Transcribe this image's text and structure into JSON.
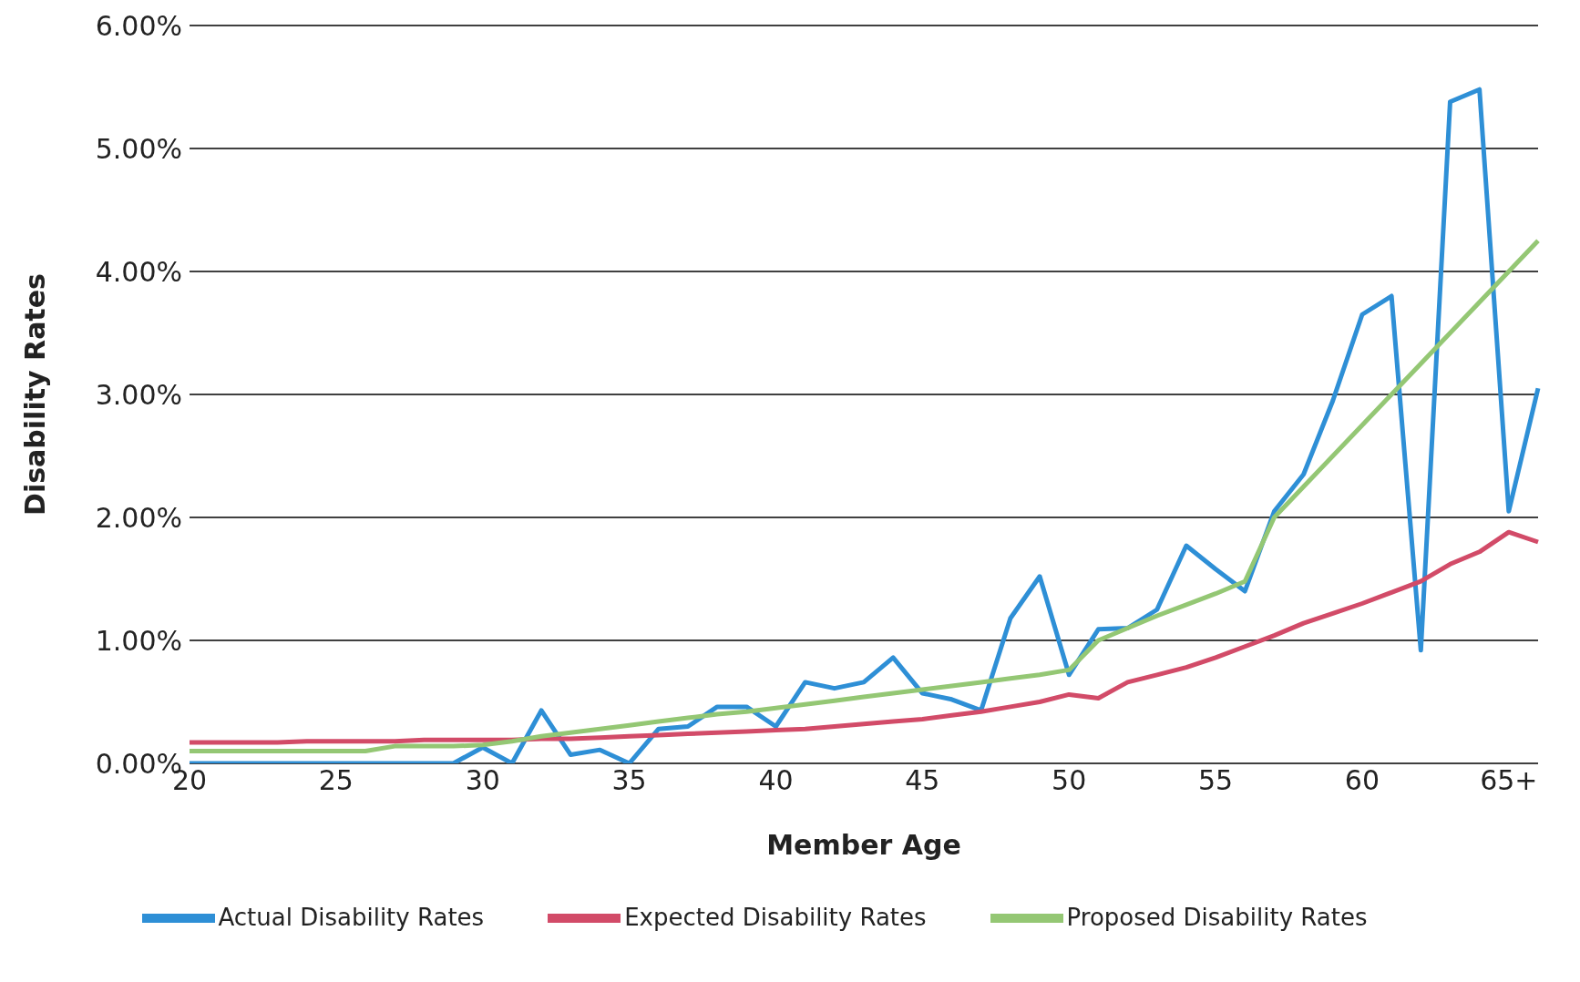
{
  "chart_data": {
    "type": "line",
    "xlabel": "Member Age",
    "ylabel": "Disability Rates",
    "categories": [
      "20",
      null,
      null,
      null,
      null,
      "25",
      null,
      null,
      null,
      null,
      "30",
      null,
      null,
      null,
      null,
      "35",
      null,
      null,
      null,
      null,
      "40",
      null,
      null,
      null,
      null,
      "45",
      null,
      null,
      null,
      null,
      "50",
      null,
      null,
      null,
      null,
      "55",
      null,
      null,
      null,
      null,
      "60",
      null,
      null,
      null,
      null,
      "65+",
      null
    ],
    "series": [
      {
        "name": "Actual Disability Rates",
        "color": "#2e8fd6",
        "values": [
          0,
          0,
          0,
          0,
          0,
          0,
          0,
          0,
          0,
          0,
          0.13,
          0,
          0.43,
          0.07,
          0.11,
          0,
          0.28,
          0.3,
          0.46,
          0.46,
          0.3,
          0.66,
          0.61,
          0.66,
          0.86,
          0.57,
          0.52,
          0.43,
          1.18,
          1.52,
          0.72,
          1.09,
          1.1,
          1.25,
          1.77,
          1.58,
          1.4,
          2.05,
          2.35,
          2.95,
          3.65,
          3.8,
          0.92,
          5.38,
          5.48,
          2.05,
          3.05
        ]
      },
      {
        "name": "Expected Disability Rates",
        "color": "#d24b68",
        "values": [
          0.17,
          0.17,
          0.17,
          0.17,
          0.18,
          0.18,
          0.18,
          0.18,
          0.19,
          0.19,
          0.19,
          0.19,
          0.2,
          0.2,
          0.21,
          0.22,
          0.23,
          0.24,
          0.25,
          0.26,
          0.27,
          0.28,
          0.3,
          0.32,
          0.34,
          0.36,
          0.39,
          0.42,
          0.46,
          0.5,
          0.56,
          0.53,
          0.66,
          0.72,
          0.78,
          0.86,
          0.95,
          1.04,
          1.14,
          1.22,
          1.3,
          1.39,
          1.48,
          1.62,
          1.72,
          1.88,
          1.8
        ]
      },
      {
        "name": "Proposed Disability Rates",
        "color": "#94c774",
        "values": [
          0.1,
          0.1,
          0.1,
          0.1,
          0.1,
          0.1,
          0.1,
          0.14,
          0.14,
          0.14,
          0.15,
          0.18,
          0.22,
          0.25,
          0.28,
          0.31,
          0.34,
          0.37,
          0.4,
          0.42,
          0.45,
          0.48,
          0.51,
          0.54,
          0.57,
          0.6,
          0.63,
          0.66,
          0.69,
          0.72,
          0.76,
          1.0,
          1.1,
          1.2,
          1.29,
          1.38,
          1.48,
          2.0,
          2.25,
          2.5,
          2.75,
          3.0,
          3.25,
          3.5,
          3.75,
          4.0,
          4.25
        ]
      }
    ],
    "ylim": [
      0,
      6
    ],
    "yticks": [
      {
        "value": 0,
        "label": "0.00%"
      },
      {
        "value": 1,
        "label": "1.00%"
      },
      {
        "value": 2,
        "label": "2.00%"
      },
      {
        "value": 3,
        "label": "3.00%"
      },
      {
        "value": 4,
        "label": "4.00%"
      },
      {
        "value": 5,
        "label": "5.00%"
      },
      {
        "value": 6,
        "label": "6.00%"
      }
    ],
    "grid": "y",
    "legend": "bottom",
    "marker": "none",
    "line_style": "solid"
  }
}
